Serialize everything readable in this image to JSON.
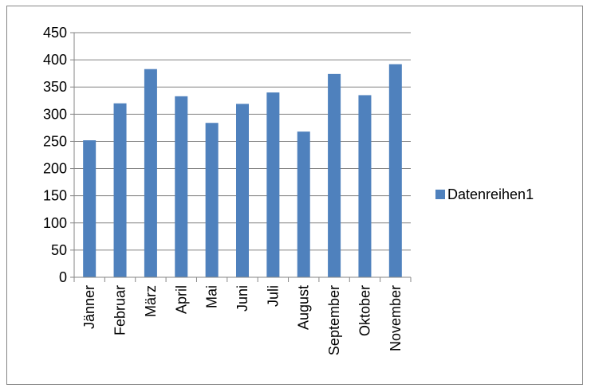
{
  "chart_data": {
    "type": "bar",
    "categories": [
      "Jänner",
      "Februar",
      "März",
      "April",
      "Mai",
      "Juni",
      "Juli",
      "August",
      "September",
      "Oktober",
      "November"
    ],
    "series": [
      {
        "name": "Datenreihen1",
        "color": "#4f81bd",
        "values": [
          252,
          320,
          383,
          333,
          284,
          319,
          340,
          268,
          374,
          335,
          392
        ]
      }
    ],
    "ylim": [
      0,
      450
    ],
    "yticks": [
      0,
      50,
      100,
      150,
      200,
      250,
      300,
      350,
      400,
      450
    ],
    "grid": true,
    "legend": "right",
    "title": "",
    "xlabel": "",
    "ylabel": ""
  },
  "colors": {
    "bar": "#4f81bd",
    "grid": "#868686",
    "frame": "#868686",
    "text": "#000000"
  }
}
